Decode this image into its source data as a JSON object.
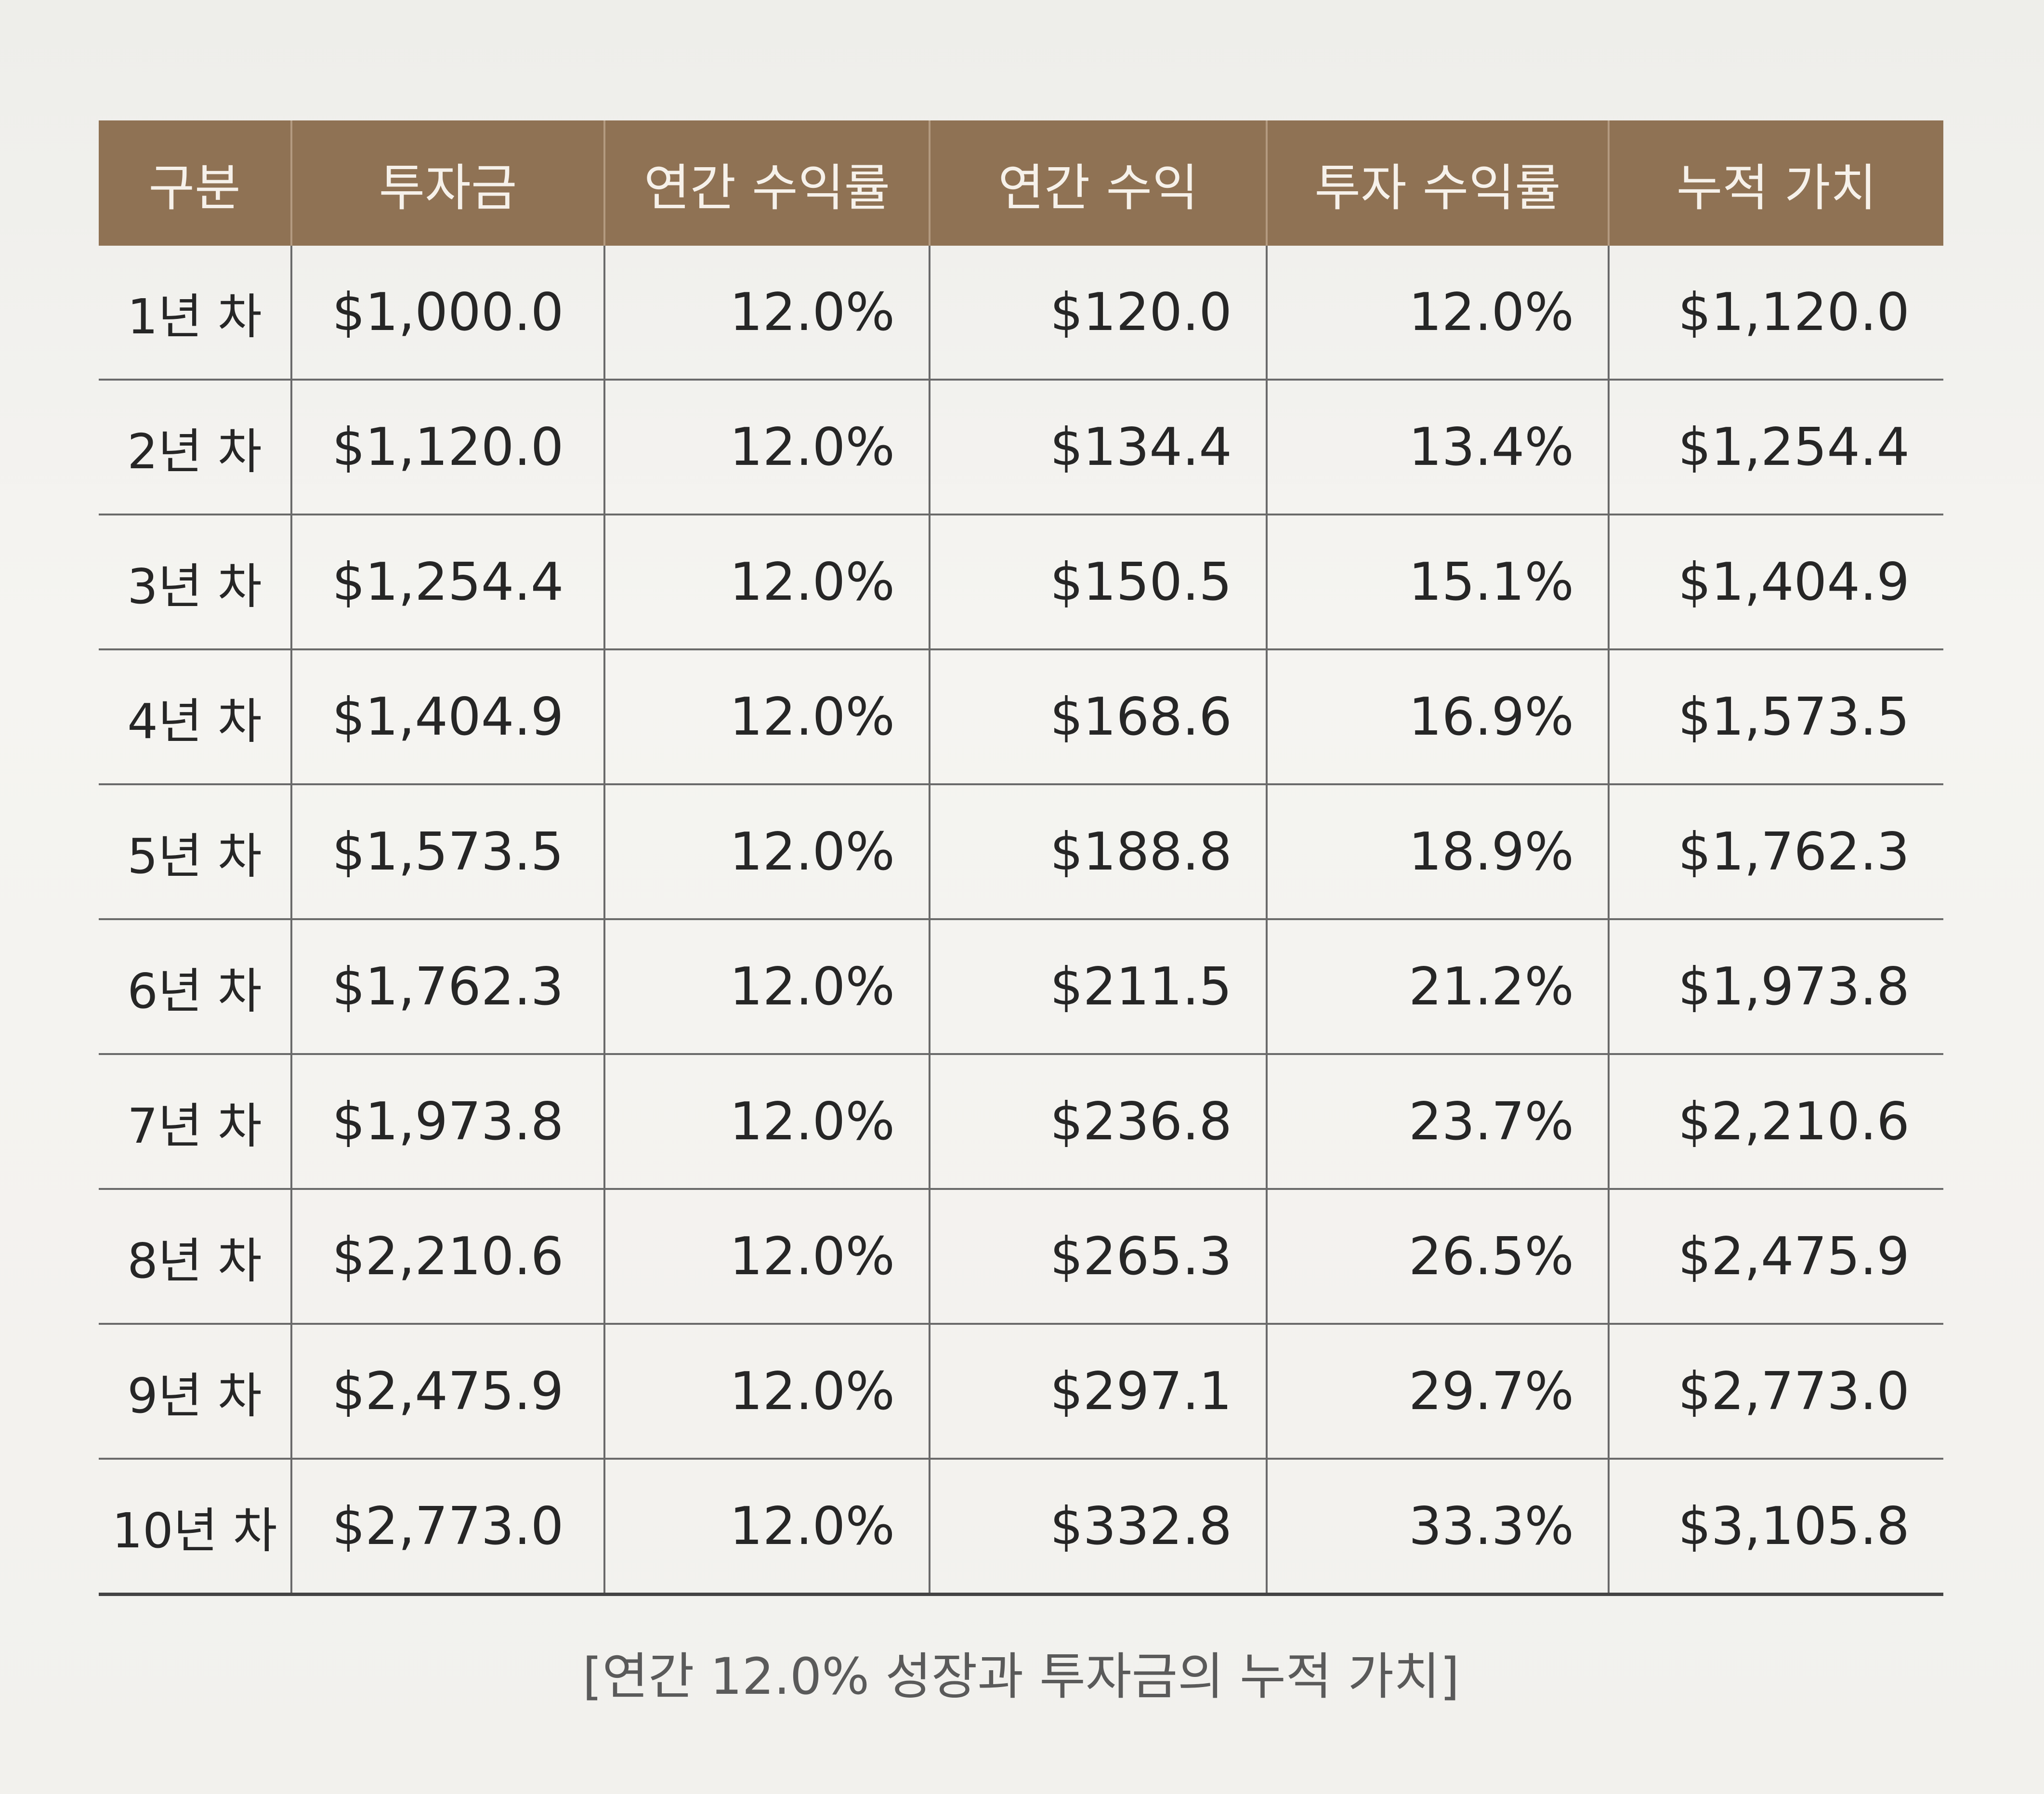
{
  "table": {
    "headers": [
      "구분",
      "투자금",
      "연간 수익률",
      "연간 수익",
      "투자 수익률",
      "누적 가치"
    ],
    "rows": [
      [
        "1년 차",
        "$1,000.0",
        "12.0%",
        "$120.0",
        "12.0%",
        "$1,120.0"
      ],
      [
        "2년 차",
        "$1,120.0",
        "12.0%",
        "$134.4",
        "13.4%",
        "$1,254.4"
      ],
      [
        "3년 차",
        "$1,254.4",
        "12.0%",
        "$150.5",
        "15.1%",
        "$1,404.9"
      ],
      [
        "4년 차",
        "$1,404.9",
        "12.0%",
        "$168.6",
        "16.9%",
        "$1,573.5"
      ],
      [
        "5년 차",
        "$1,573.5",
        "12.0%",
        "$188.8",
        "18.9%",
        "$1,762.3"
      ],
      [
        "6년 차",
        "$1,762.3",
        "12.0%",
        "$211.5",
        "21.2%",
        "$1,973.8"
      ],
      [
        "7년 차",
        "$1,973.8",
        "12.0%",
        "$236.8",
        "23.7%",
        "$2,210.6"
      ],
      [
        "8년 차",
        "$2,210.6",
        "12.0%",
        "$265.3",
        "26.5%",
        "$2,475.9"
      ],
      [
        "9년 차",
        "$2,475.9",
        "12.0%",
        "$297.1",
        "29.7%",
        "$2,773.0"
      ],
      [
        "10년 차",
        "$2,773.0",
        "12.0%",
        "$332.8",
        "33.3%",
        "$3,105.8"
      ]
    ]
  },
  "caption": "[연간 12.0% 성장과 투자금의 누적 가치]",
  "colors": {
    "header_background": "#8f7254",
    "header_text": "#f6f1ea",
    "page_background": "#f4f3ef"
  }
}
